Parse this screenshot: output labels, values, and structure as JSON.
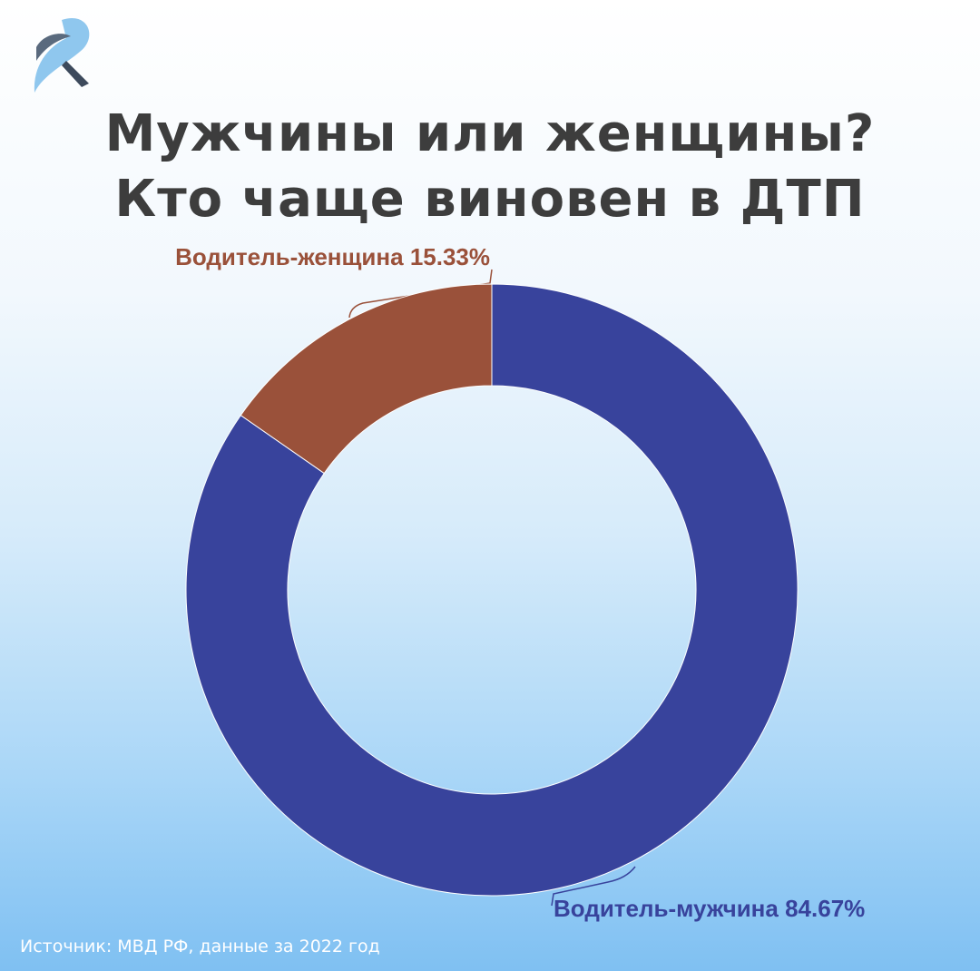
{
  "chart_data": {
    "type": "donut",
    "title": "Мужчины или женщины?\nКто чаще виновен в ДТП",
    "categories": [
      "Водитель-мужчина",
      "Водитель-женщина"
    ],
    "values": [
      84.67,
      15.33
    ],
    "value_labels": [
      "84.67%",
      "15.33%"
    ],
    "colors": [
      "#38439c",
      "#9a513a"
    ],
    "source": "Источник: МВД РФ, данные за 2022 год"
  }
}
